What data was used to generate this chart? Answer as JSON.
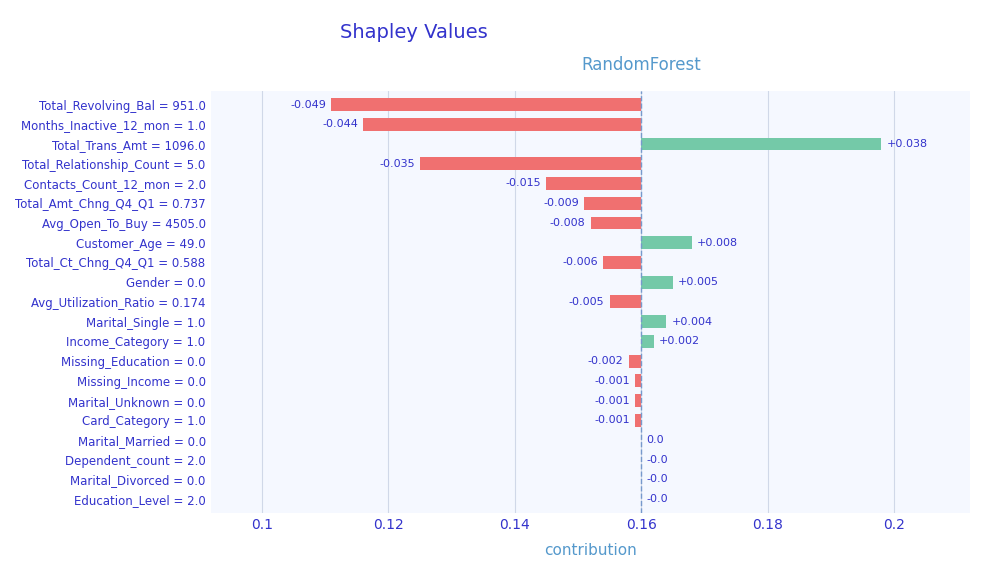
{
  "title": "Shapley Values",
  "subtitle": "RandomForest",
  "xlabel": "contribution",
  "base_value": 0.16,
  "features": [
    "Total_Revolving_Bal = 951.0",
    "Months_Inactive_12_mon = 1.0",
    "Total_Trans_Amt = 1096.0",
    "Total_Relationship_Count = 5.0",
    "Contacts_Count_12_mon = 2.0",
    "Total_Amt_Chng_Q4_Q1 = 0.737",
    "Avg_Open_To_Buy = 4505.0",
    "Customer_Age = 49.0",
    "Total_Ct_Chng_Q4_Q1 = 0.588",
    "Gender = 0.0",
    "Avg_Utilization_Ratio = 0.174",
    "Marital_Single = 1.0",
    "Income_Category = 1.0",
    "Missing_Education = 0.0",
    "Missing_Income = 0.0",
    "Marital_Unknown = 0.0",
    "Card_Category = 1.0",
    "Marital_Married = 0.0",
    "Dependent_count = 2.0",
    "Marital_Divorced = 0.0",
    "Education_Level = 2.0"
  ],
  "shap_values": [
    -0.049,
    -0.044,
    0.038,
    -0.035,
    -0.015,
    -0.009,
    -0.008,
    0.008,
    -0.006,
    0.005,
    -0.005,
    0.004,
    0.002,
    -0.002,
    -0.001,
    -0.001,
    -0.001,
    0.0,
    -0.0,
    -0.0,
    -0.0
  ],
  "value_labels": [
    "-0.049",
    "-0.044",
    "+0.038",
    "-0.035",
    "-0.015",
    "-0.009",
    "-0.008",
    "+0.008",
    "-0.006",
    "+0.005",
    "-0.005",
    "+0.004",
    "+0.002",
    "-0.002",
    "-0.001",
    "-0.001",
    "-0.001",
    "0.0",
    "-0.0",
    "-0.0",
    "-0.0"
  ],
  "pos_color": "#74c9a8",
  "neg_color": "#f07070",
  "title_color": "#3333cc",
  "subtitle_color": "#5599cc",
  "label_color": "#3333cc",
  "xlabel_color": "#5599cc",
  "tick_color": "#3333cc",
  "background_color": "#ffffff",
  "plot_bg_color": "#f5f8ff",
  "grid_color": "#d0d8e8",
  "dashed_line_color": "#7799cc",
  "xlim": [
    0.092,
    0.212
  ],
  "dashed_line_x": 0.16,
  "xticks": [
    0.1,
    0.12,
    0.14,
    0.16,
    0.18,
    0.2
  ]
}
